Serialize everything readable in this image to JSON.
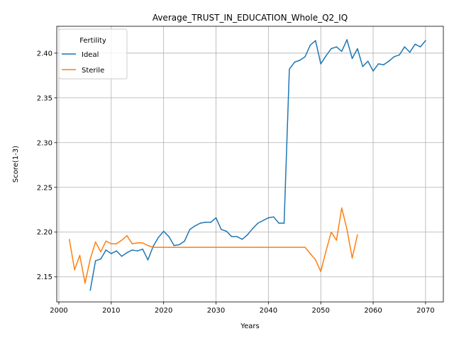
{
  "chart_data": {
    "type": "line",
    "title": "Average_TRUST_IN_EDUCATION_Whole_Q2_IQ",
    "xlabel": "Years",
    "ylabel": "Score(1-3)",
    "xlim": [
      1999.6,
      2073.4
    ],
    "ylim": [
      2.122,
      2.43
    ],
    "xticks": [
      2000,
      2010,
      2020,
      2030,
      2040,
      2050,
      2060,
      2070
    ],
    "yticks": [
      2.15,
      2.2,
      2.25,
      2.3,
      2.35,
      2.4
    ],
    "xtick_labels": [
      "2000",
      "2010",
      "2020",
      "2030",
      "2040",
      "2050",
      "2060",
      "2070"
    ],
    "ytick_labels": [
      "2.15",
      "2.20",
      "2.25",
      "2.30",
      "2.35",
      "2.40"
    ],
    "grid": true,
    "legend": {
      "title": "Fertility",
      "position": "top-left"
    },
    "series": [
      {
        "name": "Ideal",
        "color": "#1f77b4",
        "x": [
          2006,
          2007,
          2008,
          2009,
          2010,
          2011,
          2012,
          2013,
          2014,
          2015,
          2016,
          2017,
          2018,
          2019,
          2020,
          2021,
          2022,
          2023,
          2024,
          2025,
          2026,
          2027,
          2028,
          2029,
          2030,
          2031,
          2032,
          2033,
          2034,
          2035,
          2036,
          2037,
          2038,
          2039,
          2040,
          2041,
          2042,
          2043,
          2044,
          2045,
          2046,
          2047,
          2048,
          2049,
          2050,
          2051,
          2052,
          2053,
          2054,
          2055,
          2056,
          2057,
          2058,
          2059,
          2060,
          2061,
          2062,
          2063,
          2064,
          2065,
          2066,
          2067,
          2068,
          2069,
          2070
        ],
        "y": [
          2.135,
          2.168,
          2.17,
          2.18,
          2.176,
          2.179,
          2.173,
          2.177,
          2.18,
          2.179,
          2.181,
          2.169,
          2.184,
          2.194,
          2.201,
          2.195,
          2.185,
          2.186,
          2.19,
          2.203,
          2.207,
          2.21,
          2.211,
          2.211,
          2.216,
          2.203,
          2.201,
          2.195,
          2.195,
          2.192,
          2.197,
          2.204,
          2.21,
          2.213,
          2.216,
          2.217,
          2.21,
          2.21,
          2.382,
          2.39,
          2.392,
          2.396,
          2.409,
          2.414,
          2.388,
          2.397,
          2.405,
          2.407,
          2.402,
          2.415,
          2.394,
          2.405,
          2.385,
          2.391,
          2.38,
          2.388,
          2.387,
          2.391,
          2.396,
          2.398,
          2.407,
          2.401,
          2.41,
          2.407,
          2.414
        ]
      },
      {
        "name": "Sterile",
        "color": "#ff7f0e",
        "x": [
          2002,
          2003,
          2004,
          2005,
          2006,
          2007,
          2008,
          2009,
          2010,
          2011,
          2012,
          2013,
          2014,
          2015,
          2016,
          2017,
          2018,
          2019,
          2020,
          2021,
          2022,
          2023,
          2024,
          2025,
          2026,
          2027,
          2028,
          2029,
          2030,
          2031,
          2032,
          2033,
          2034,
          2035,
          2036,
          2037,
          2038,
          2039,
          2040,
          2041,
          2042,
          2043,
          2044,
          2045,
          2046,
          2047,
          2048,
          2049,
          2050,
          2051,
          2052,
          2053,
          2054,
          2055,
          2056,
          2057
        ],
        "y": [
          2.192,
          2.158,
          2.174,
          2.143,
          2.17,
          2.189,
          2.178,
          2.19,
          2.187,
          2.187,
          2.191,
          2.196,
          2.187,
          2.188,
          2.188,
          2.185,
          2.183,
          2.183,
          2.183,
          2.183,
          2.183,
          2.183,
          2.183,
          2.183,
          2.183,
          2.183,
          2.183,
          2.183,
          2.183,
          2.183,
          2.183,
          2.183,
          2.183,
          2.183,
          2.183,
          2.183,
          2.183,
          2.183,
          2.183,
          2.183,
          2.183,
          2.183,
          2.183,
          2.183,
          2.183,
          2.183,
          2.176,
          2.169,
          2.156,
          2.179,
          2.2,
          2.191,
          2.227,
          2.203,
          2.171,
          2.197
        ]
      }
    ]
  }
}
